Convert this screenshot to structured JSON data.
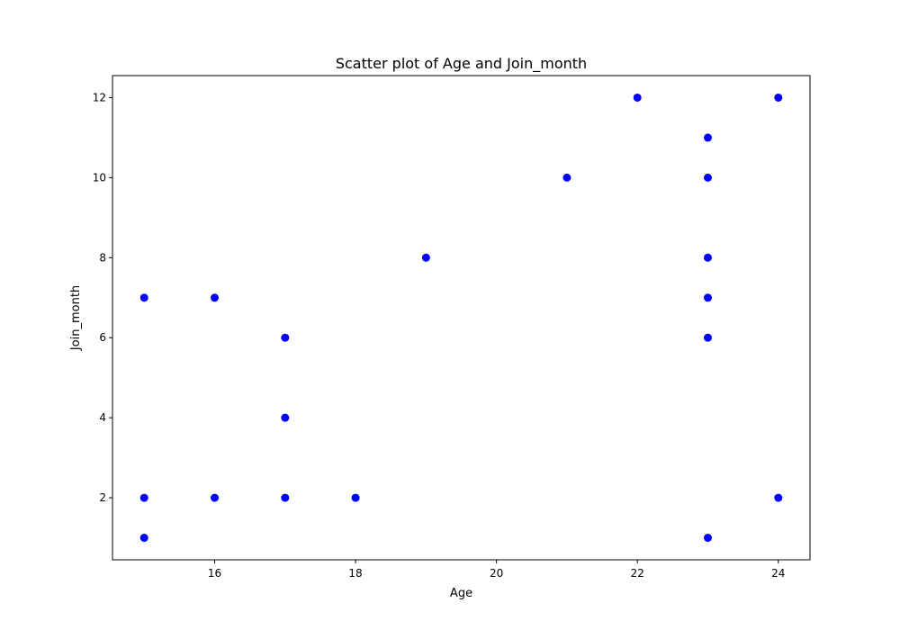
{
  "chart_data": {
    "type": "scatter",
    "title": "Scatter plot of Age and Join_month",
    "xlabel": "Age",
    "ylabel": "Join_month",
    "xlim": [
      14.55,
      24.45
    ],
    "ylim": [
      0.45,
      12.55
    ],
    "xticks": [
      16,
      18,
      20,
      22,
      24
    ],
    "yticks": [
      2,
      4,
      6,
      8,
      10,
      12
    ],
    "grid": false,
    "marker_color": "#0000ff",
    "points": [
      {
        "x": 15,
        "y": 7
      },
      {
        "x": 15,
        "y": 2
      },
      {
        "x": 15,
        "y": 1
      },
      {
        "x": 16,
        "y": 7
      },
      {
        "x": 16,
        "y": 2
      },
      {
        "x": 17,
        "y": 6
      },
      {
        "x": 17,
        "y": 4
      },
      {
        "x": 17,
        "y": 2
      },
      {
        "x": 18,
        "y": 2
      },
      {
        "x": 19,
        "y": 8
      },
      {
        "x": 21,
        "y": 10
      },
      {
        "x": 22,
        "y": 12
      },
      {
        "x": 23,
        "y": 11
      },
      {
        "x": 23,
        "y": 10
      },
      {
        "x": 23,
        "y": 8
      },
      {
        "x": 23,
        "y": 7
      },
      {
        "x": 23,
        "y": 6
      },
      {
        "x": 23,
        "y": 1
      },
      {
        "x": 24,
        "y": 12
      },
      {
        "x": 24,
        "y": 2
      }
    ]
  }
}
